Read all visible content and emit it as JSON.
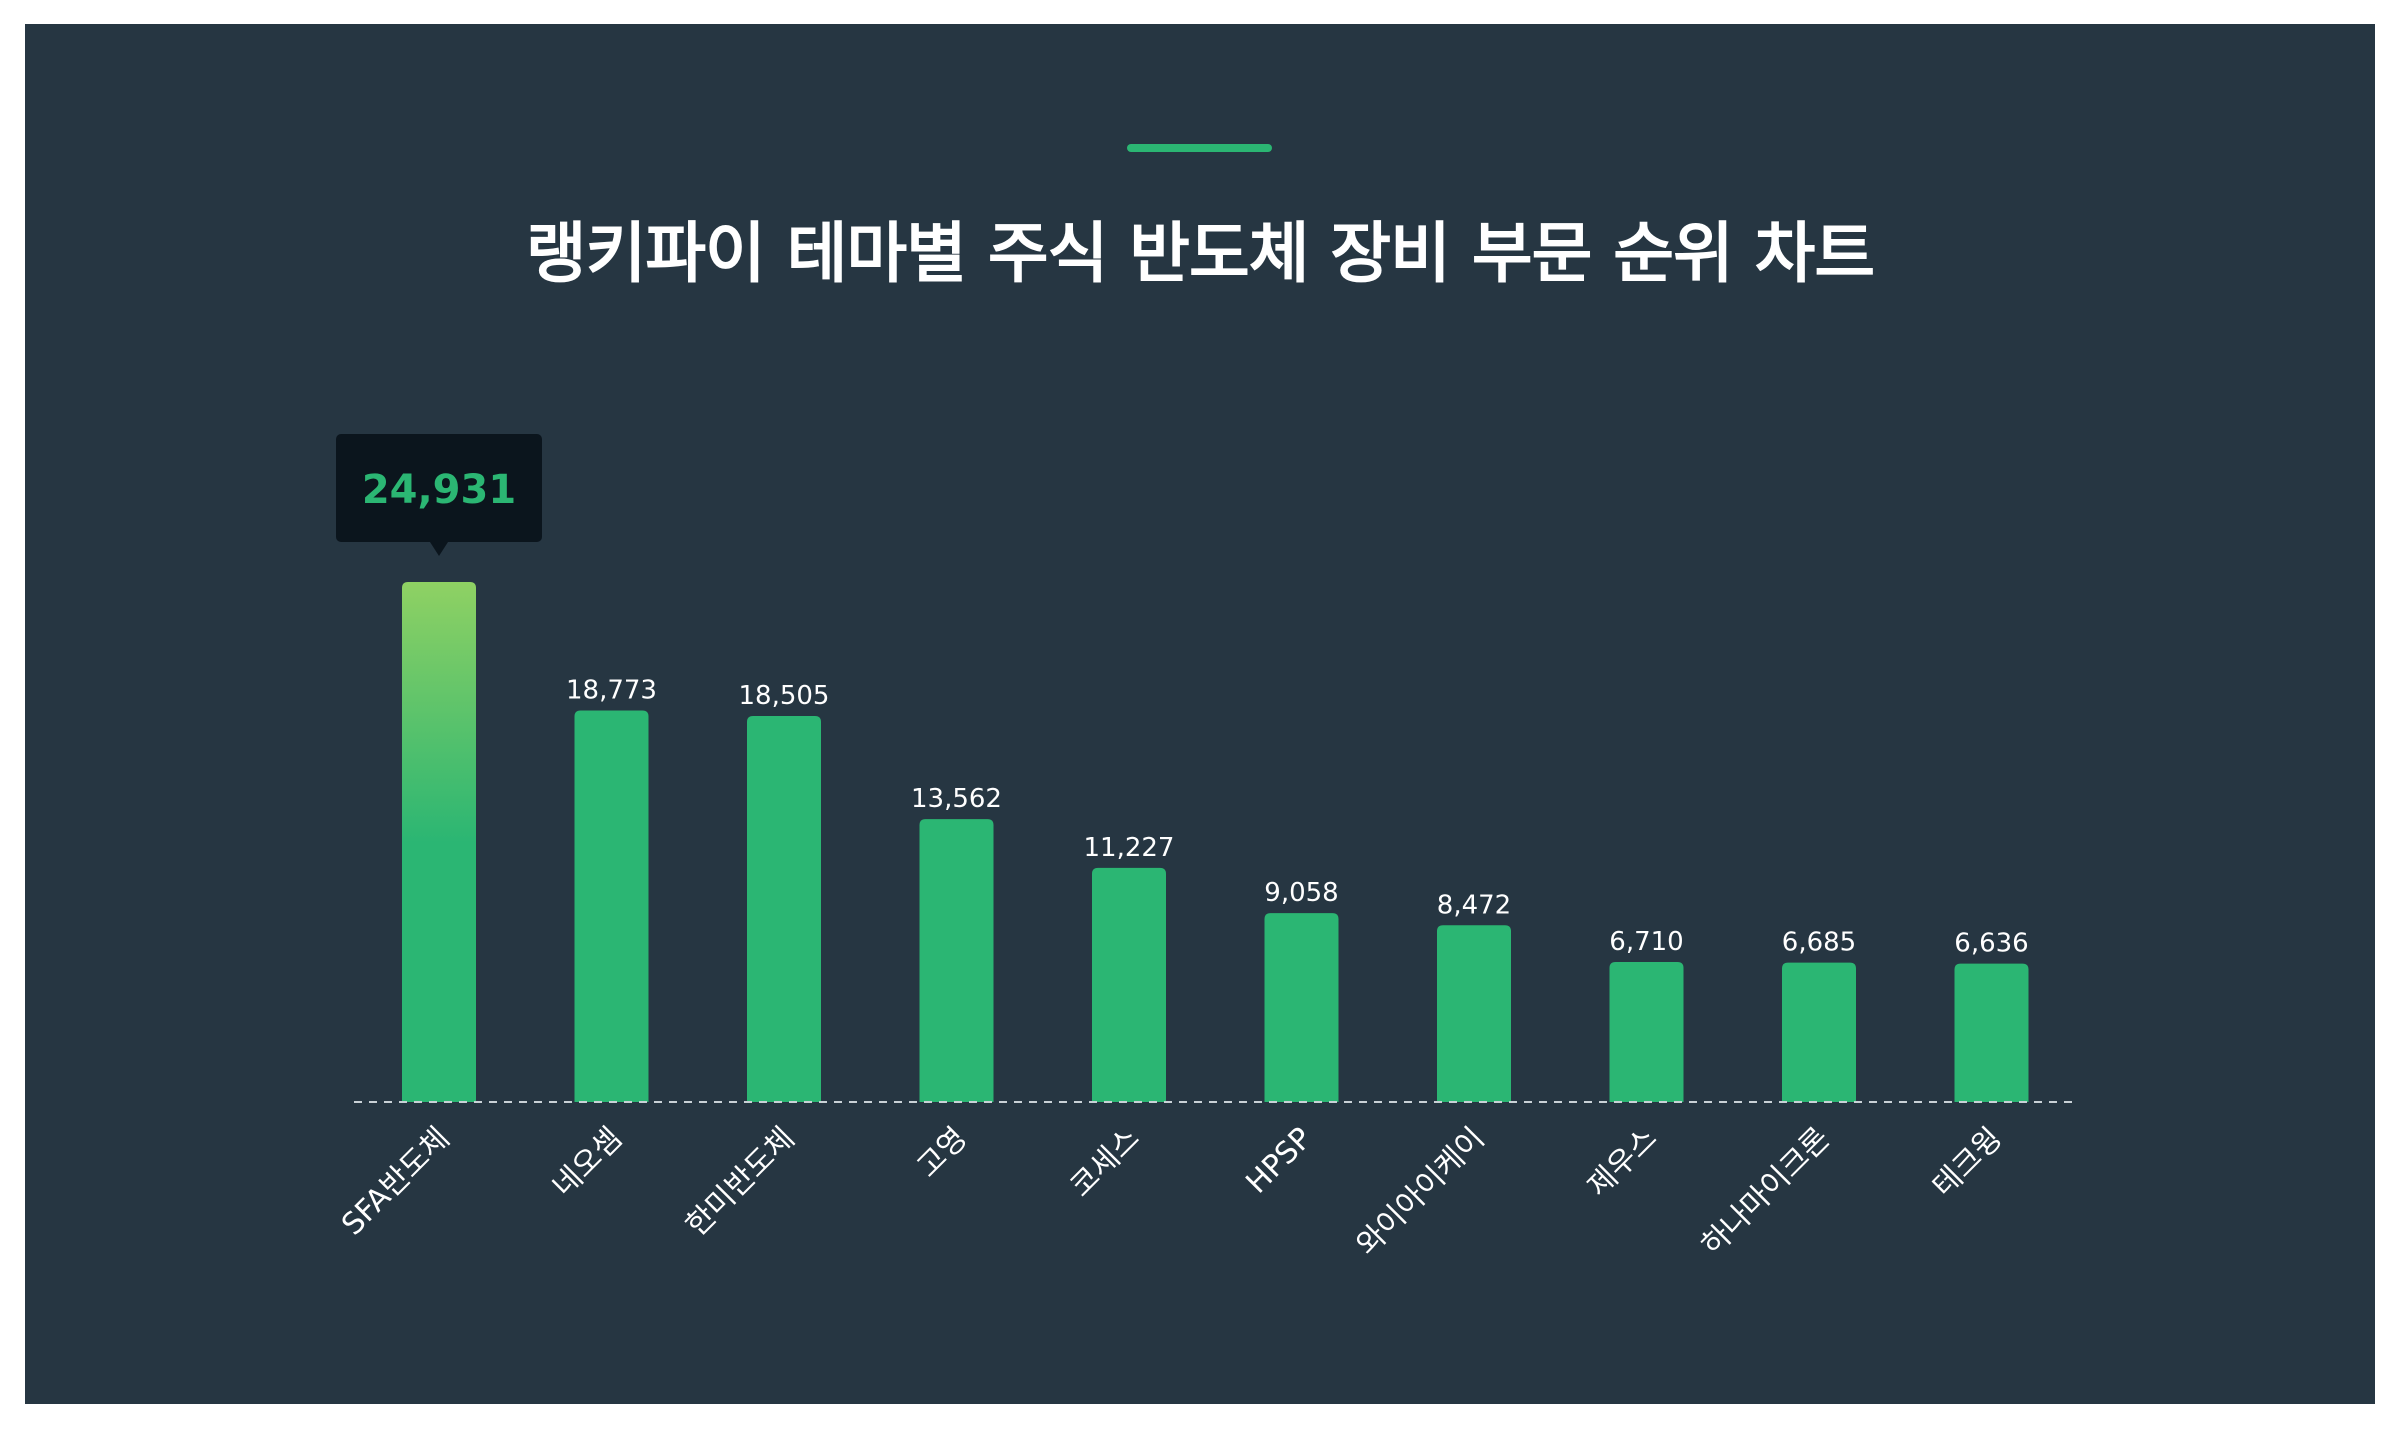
{
  "title": "랭키파이 테마별 주식 반도체 장비 부문 순위 차트",
  "colors": {
    "background": "#263642",
    "bar": "#2bb673",
    "highlight_top": "#8fd163",
    "accent": "#2bb673",
    "tooltip_bg": "#0b151d",
    "tooltip_text": "#2bb673",
    "baseline": "#c9d1d6"
  },
  "chart_data": {
    "type": "bar",
    "title": "랭키파이 테마별 주식 반도체 장비 부문 순위 차트",
    "categories": [
      "SFA반도체",
      "네오셈",
      "한미반도체",
      "고영",
      "코세스",
      "HPSP",
      "와이아이케이",
      "제우스",
      "하나마이크론",
      "테크윙"
    ],
    "values": [
      24931,
      18773,
      18505,
      13562,
      11227,
      9058,
      8472,
      6710,
      6685,
      6636
    ],
    "value_labels": [
      "24,931",
      "18,773",
      "18,505",
      "13,562",
      "11,227",
      "9,058",
      "8,472",
      "6,710",
      "6,685",
      "6,636"
    ],
    "highlighted_index": 0,
    "xlabel": "",
    "ylabel": "",
    "ylim": [
      0,
      24931
    ],
    "grid": false,
    "legend": "none",
    "baseline": "dashed"
  }
}
